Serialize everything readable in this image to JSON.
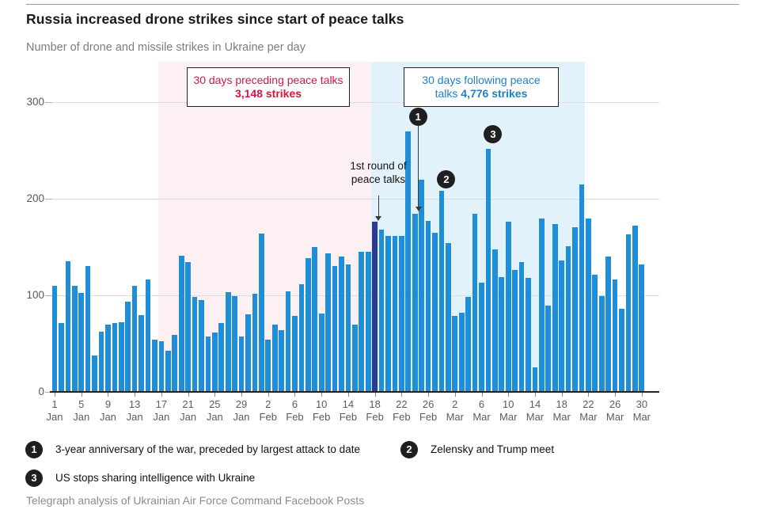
{
  "chart_data": {
    "type": "bar",
    "title": "Russia increased drone strikes since start of peace talks",
    "subtitle": "Number of drone and missile strikes in Ukraine per day",
    "xlabel": "",
    "ylabel": "",
    "ylim": [
      0,
      320
    ],
    "y_ticks": [
      0,
      100,
      200,
      300
    ],
    "x_tick_interval": 4,
    "grid": "horizontal",
    "categories": [
      "1 Jan",
      "2 Jan",
      "3 Jan",
      "4 Jan",
      "5 Jan",
      "6 Jan",
      "7 Jan",
      "8 Jan",
      "9 Jan",
      "10 Jan",
      "11 Jan",
      "12 Jan",
      "13 Jan",
      "14 Jan",
      "15 Jan",
      "16 Jan",
      "17 Jan",
      "18 Jan",
      "19 Jan",
      "20 Jan",
      "21 Jan",
      "22 Jan",
      "23 Jan",
      "24 Jan",
      "25 Jan",
      "26 Jan",
      "27 Jan",
      "28 Jan",
      "29 Jan",
      "30 Jan",
      "31 Jan",
      "1 Feb",
      "2 Feb",
      "3 Feb",
      "4 Feb",
      "5 Feb",
      "6 Feb",
      "7 Feb",
      "8 Feb",
      "9 Feb",
      "10 Feb",
      "11 Feb",
      "12 Feb",
      "13 Feb",
      "14 Feb",
      "15 Feb",
      "16 Feb",
      "17 Feb",
      "18 Feb",
      "19 Feb",
      "20 Feb",
      "21 Feb",
      "22 Feb",
      "23 Feb",
      "24 Feb",
      "25 Feb",
      "26 Feb",
      "27 Feb",
      "28 Feb",
      "1 Mar",
      "2 Mar",
      "3 Mar",
      "4 Mar",
      "5 Mar",
      "6 Mar",
      "7 Mar",
      "8 Mar",
      "9 Mar",
      "10 Mar",
      "11 Mar",
      "12 Mar",
      "13 Mar",
      "14 Mar",
      "15 Mar",
      "16 Mar",
      "17 Mar",
      "18 Mar",
      "19 Mar",
      "20 Mar",
      "21 Mar",
      "22 Mar",
      "23 Mar",
      "24 Mar",
      "25 Mar",
      "26 Mar",
      "27 Mar",
      "28 Mar",
      "29 Mar",
      "30 Mar"
    ],
    "values": [
      110,
      71,
      135,
      110,
      102,
      130,
      37,
      62,
      69,
      71,
      72,
      93,
      110,
      79,
      116,
      54,
      52,
      42,
      59,
      141,
      134,
      98,
      95,
      57,
      61,
      71,
      103,
      99,
      57,
      80,
      101,
      164,
      54,
      69,
      64,
      104,
      78,
      111,
      138,
      150,
      81,
      143,
      130,
      140,
      132,
      69,
      145,
      145,
      176,
      168,
      161,
      161,
      161,
      270,
      184,
      220,
      177,
      165,
      208,
      154,
      78,
      82,
      98,
      184,
      113,
      252,
      147,
      119,
      176,
      126,
      134,
      118,
      25,
      179,
      89,
      174,
      136,
      151,
      170,
      215,
      179,
      121,
      99,
      140,
      116,
      86,
      163,
      172,
      132
    ],
    "highlight": {
      "category": "18 Feb",
      "index": 48
    },
    "regions": [
      {
        "name": "preceding",
        "start_index": 16,
        "end_index": 48,
        "fill": "#fdf0f3"
      },
      {
        "name": "following",
        "start_index": 48,
        "end_index": 80,
        "fill": "#e2f2fb"
      }
    ],
    "annotation_boxes": {
      "left": {
        "line1": "30 days preceding peace talks",
        "line2": "3,148 strikes",
        "text_color": "#d01840"
      },
      "right": {
        "line1": "30 days following peace",
        "line2_plain": "talks",
        "line2_bold": "4,776 strikes",
        "text_color": "#2180c4"
      }
    },
    "peace_talks_label": {
      "line1": "1st round of",
      "line2": "peace talks",
      "index": 48
    },
    "markers": [
      {
        "label": "1",
        "index": 54,
        "dx": 4,
        "y": 147,
        "arrow_to_y": 261,
        "note": "3-year anniversary of the war, preceded by largest attack to date"
      },
      {
        "label": "2",
        "index": 58,
        "dx": 6,
        "y": 226,
        "note": "Zelensky and Trump meet"
      },
      {
        "label": "3",
        "index": 65,
        "dx": 6,
        "y": 169,
        "note": "US stops sharing intelligence with Ukraine"
      }
    ],
    "colors": {
      "bar": "#1e8ed9",
      "highlight_bar": "#2c3a8f",
      "region_preceding": "#fdf0f3",
      "region_following": "#e2f2fb",
      "accent_red": "#d01840",
      "accent_blue": "#2180c4"
    },
    "source": "Telegraph analysis of Ukrainian Air Force Command Facebook Posts"
  }
}
